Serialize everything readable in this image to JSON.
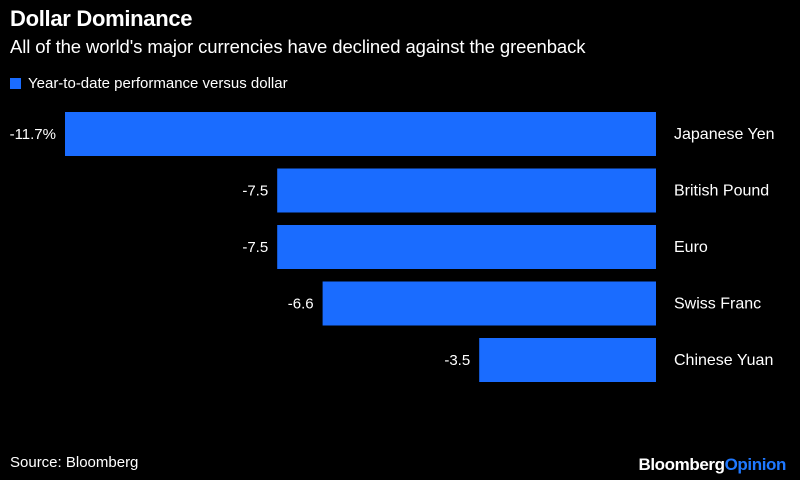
{
  "header": {
    "title": "Dollar Dominance",
    "subtitle": "All of the world's major currencies have declined against the greenback"
  },
  "legend": {
    "label": "Year-to-date performance versus dollar"
  },
  "footer": {
    "source": "Source: Bloomberg",
    "brand_main": "Bloomberg",
    "brand_suffix": "Opinion"
  },
  "colors": {
    "background": "#000000",
    "bar": "#1a6cff",
    "text": "#ffffff",
    "brand_accent": "#1f78ff"
  },
  "chart_data": {
    "type": "bar",
    "orientation": "horizontal",
    "categories": [
      "Japanese Yen",
      "British Pound",
      "Euro",
      "Swiss Franc",
      "Chinese Yuan"
    ],
    "values": [
      -11.7,
      -7.5,
      -7.5,
      -6.6,
      -3.5
    ],
    "value_labels": [
      "-11.7%",
      "-7.5",
      "-7.5",
      "-6.6",
      "-3.5"
    ],
    "series": [
      {
        "name": "Year-to-date performance versus dollar",
        "values": [
          -11.7,
          -7.5,
          -7.5,
          -6.6,
          -3.5
        ]
      }
    ],
    "title": "Dollar Dominance",
    "subtitle": "All of the world's major currencies have declined against the greenback",
    "xlabel": "",
    "ylabel": "",
    "xlim": [
      -11.7,
      0
    ],
    "grid": false,
    "legend_position": "top-left"
  }
}
